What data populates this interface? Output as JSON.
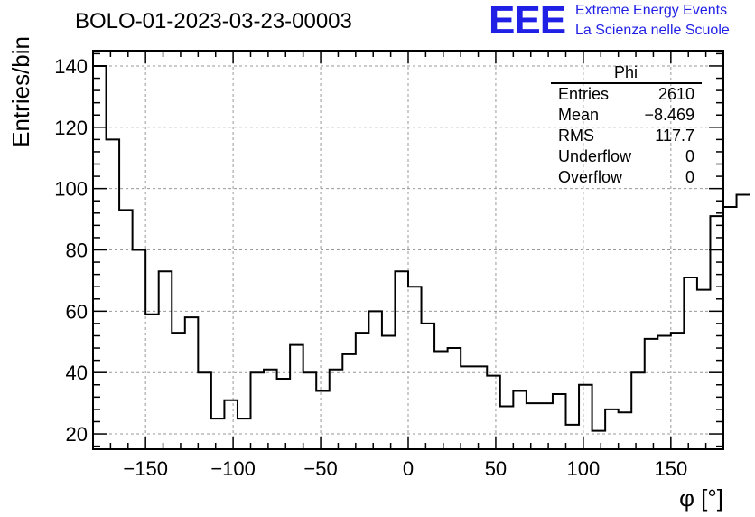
{
  "header": {
    "title": "BOLO-01-2023-03-23-00003",
    "logo_text": "EEE",
    "logo_line1": "Extreme Energy Events",
    "logo_line2": "La Scienza nelle Scuole"
  },
  "stats": {
    "name": "Phi",
    "rows": [
      {
        "label": "Entries",
        "value": "2610"
      },
      {
        "label": "Mean",
        "value": "−8.469"
      },
      {
        "label": "RMS",
        "value": "117.7"
      },
      {
        "label": "Underflow",
        "value": "0"
      },
      {
        "label": "Overflow",
        "value": "0"
      }
    ]
  },
  "colors": {
    "line": "#000000",
    "grid": "#999999",
    "logo": "#1f1fe6"
  },
  "chart_data": {
    "type": "histogram",
    "xlabel": "φ [°]",
    "ylabel": "Entries/bin",
    "xlim": [
      -180,
      180
    ],
    "ylim": [
      15,
      145
    ],
    "x_ticks": [
      -150,
      -100,
      -50,
      0,
      50,
      100,
      150
    ],
    "x_tick_labels": [
      "−150",
      "−100",
      "−50",
      "0",
      "50",
      "100",
      "150"
    ],
    "y_ticks": [
      20,
      40,
      60,
      80,
      100,
      120,
      140
    ],
    "y_tick_labels": [
      "20",
      "40",
      "60",
      "80",
      "100",
      "120",
      "140"
    ],
    "grid": true,
    "bin_edges_start": -180,
    "bin_width": 7.5,
    "values": [
      140,
      116,
      93,
      80,
      59,
      73,
      53,
      58,
      40,
      25,
      31,
      25,
      40,
      41,
      38,
      49,
      40,
      34,
      41,
      46,
      53,
      60,
      52,
      73,
      68,
      56,
      47,
      48,
      42,
      42,
      39,
      29,
      34,
      30,
      30,
      33,
      23,
      36,
      21,
      28,
      27,
      40,
      51,
      52,
      53,
      71,
      67,
      91,
      94,
      98
    ]
  }
}
